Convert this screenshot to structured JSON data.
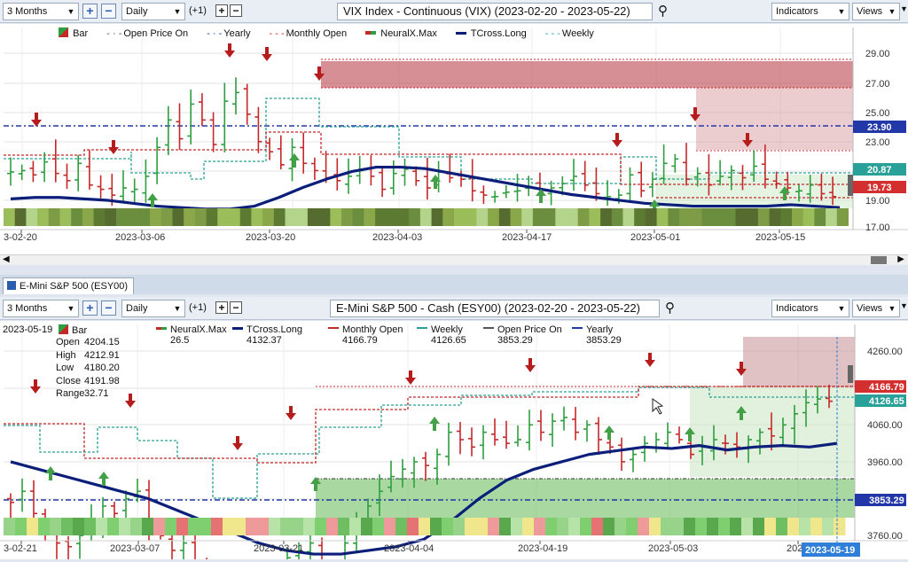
{
  "top": {
    "period": "3 Months",
    "interval": "Daily",
    "interval_adj": "(+1)",
    "title": "VIX Index - Continuous (VIX) (2023-02-20 - 2023-05-22)",
    "indicators_label": "Indicators",
    "views_label": "Views",
    "legend": [
      "Bar",
      "Open Price On",
      "Yearly",
      "Monthly Open",
      "NeuralX.Max",
      "TCross.Long",
      "Weekly"
    ],
    "price_labels": [
      "29.00",
      "27.00",
      "25.00",
      "23.00",
      "21.00",
      "19.00",
      "17.00"
    ],
    "price_boxes": [
      {
        "text": "23.90",
        "color": "#2238a8"
      },
      {
        "text": "20.87",
        "color": "#2aa198"
      },
      {
        "text": "19.73",
        "color": "#d32f2f"
      }
    ],
    "date_labels": [
      "3-02-20",
      "2023-03-06",
      "2023-03-20",
      "2023-04-03",
      "2023-04-17",
      "2023-05-01",
      "2023-05-15"
    ]
  },
  "tab": {
    "label": "E-Mini S&P 500 (ESY00)"
  },
  "bottom": {
    "period": "3 Months",
    "interval": "Daily",
    "interval_adj": "(+1)",
    "title": "E-Mini S&P 500 - Cash (ESY00) (2023-02-20 - 2023-05-22)",
    "indicators_label": "Indicators",
    "views_label": "Views",
    "date": "2023-05-19",
    "ohlc": [
      {
        "k": "Open",
        "v": "4204.15"
      },
      {
        "k": "High",
        "v": "4212.91"
      },
      {
        "k": "Low",
        "v": "4180.20"
      },
      {
        "k": "Close",
        "v": "4191.98"
      },
      {
        "k": "Range",
        "v": "32.71"
      }
    ],
    "legend": [
      {
        "name": "Bar",
        "value": ""
      },
      {
        "name": "NeuralX.Max",
        "value": "26.5"
      },
      {
        "name": "TCross.Long",
        "value": "4132.37"
      },
      {
        "name": "Monthly Open",
        "value": "4166.79"
      },
      {
        "name": "Weekly",
        "value": "4126.65"
      },
      {
        "name": "Open Price On",
        "value": "3853.29"
      },
      {
        "name": "Yearly",
        "value": "3853.29"
      }
    ],
    "price_labels": [
      "4260.00",
      "4160.00",
      "4060.00",
      "3960.00",
      "3860.00",
      "3760.00"
    ],
    "price_boxes": [
      {
        "text": "4166.79",
        "color": "#d32f2f"
      },
      {
        "text": "4126.65",
        "color": "#2aa198"
      },
      {
        "text": "3853.29",
        "color": "#2238a8"
      }
    ],
    "date_labels": [
      "3-02-21",
      "2023-03-07",
      "2023-03-21",
      "2023-04-04",
      "2023-04-19",
      "2023-05-03",
      "202"
    ],
    "current_date": "2023-05-19"
  }
}
